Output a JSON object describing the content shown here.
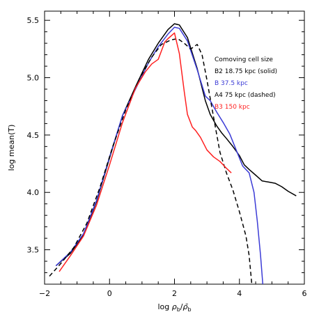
{
  "chart_data": {
    "type": "line",
    "xlabel_prefix": "log ",
    "xlabel_ratio": "ρ_b/ρ̄_b",
    "ylabel": "log mean(T)",
    "xlim": [
      -2,
      6
    ],
    "ylim": [
      3.2,
      5.58
    ],
    "xticks": [
      -2,
      0,
      2,
      4,
      6
    ],
    "xtick_labels": [
      "−2",
      "0",
      "2",
      "4",
      "6"
    ],
    "yticks": [
      3.5,
      4.0,
      4.5,
      5.0,
      5.5
    ],
    "ytick_labels": [
      "3.5",
      "4.0",
      "4.5",
      "5.0",
      "5.5"
    ],
    "grid": false,
    "legend_title": "Comoving cell size",
    "series": [
      {
        "name": "B2 18.75 kpc (solid)",
        "color": "#000000",
        "dash": "solid",
        "x": [
          -1.65,
          -1.2,
          -0.8,
          -0.4,
          0.0,
          0.4,
          0.8,
          1.2,
          1.5,
          1.8,
          2.0,
          2.15,
          2.4,
          2.7,
          2.95,
          3.1,
          3.3,
          3.45,
          3.6,
          3.8,
          4.0,
          4.15,
          4.3,
          4.5,
          4.7,
          4.9,
          5.1,
          5.3,
          5.5,
          5.75
        ],
        "y": [
          3.36,
          3.47,
          3.63,
          3.92,
          4.3,
          4.67,
          4.92,
          5.16,
          5.3,
          5.42,
          5.47,
          5.46,
          5.35,
          5.08,
          4.8,
          4.68,
          4.58,
          4.52,
          4.47,
          4.4,
          4.32,
          4.24,
          4.2,
          4.15,
          4.1,
          4.09,
          4.08,
          4.05,
          4.01,
          3.97
        ]
      },
      {
        "name": "B 37.5 kpc",
        "color": "#3b3bd6",
        "dash": "solid",
        "x": [
          -1.65,
          -1.2,
          -0.8,
          -0.4,
          0.0,
          0.4,
          0.8,
          1.2,
          1.5,
          1.8,
          2.0,
          2.15,
          2.4,
          2.7,
          2.95,
          3.1,
          3.3,
          3.5,
          3.7,
          3.9,
          4.1,
          4.3,
          4.45,
          4.55,
          4.65,
          4.72
        ],
        "y": [
          3.36,
          3.48,
          3.64,
          3.93,
          4.31,
          4.67,
          4.9,
          5.13,
          5.27,
          5.38,
          5.44,
          5.43,
          5.32,
          5.07,
          4.84,
          4.8,
          4.7,
          4.61,
          4.51,
          4.37,
          4.23,
          4.17,
          4.0,
          3.75,
          3.45,
          3.2
        ]
      },
      {
        "name": "A4 75 kpc (dashed)",
        "color": "#000000",
        "dash": "dashed",
        "x": [
          -1.85,
          -1.5,
          -1.1,
          -0.7,
          -0.3,
          0.1,
          0.5,
          0.9,
          1.3,
          1.6,
          1.9,
          2.1,
          2.3,
          2.5,
          2.7,
          2.85,
          3.0,
          3.2,
          3.4,
          3.6,
          3.8,
          4.0,
          4.2,
          4.3,
          4.38
        ],
        "y": [
          3.27,
          3.38,
          3.52,
          3.73,
          4.04,
          4.4,
          4.72,
          4.98,
          5.18,
          5.29,
          5.33,
          5.34,
          5.3,
          5.25,
          5.29,
          5.2,
          4.98,
          4.66,
          4.35,
          4.17,
          4.02,
          3.83,
          3.62,
          3.45,
          3.2
        ]
      },
      {
        "name": "B3 150 kpc",
        "color": "#ff2020",
        "dash": "solid",
        "x": [
          -1.55,
          -1.2,
          -0.8,
          -0.4,
          0.0,
          0.4,
          0.8,
          1.1,
          1.3,
          1.5,
          1.7,
          1.8,
          2.0,
          2.15,
          2.3,
          2.4,
          2.55,
          2.65,
          2.8,
          3.0,
          3.2,
          3.4,
          3.6,
          3.75
        ],
        "y": [
          3.31,
          3.45,
          3.62,
          3.89,
          4.24,
          4.61,
          4.91,
          5.05,
          5.12,
          5.16,
          5.31,
          5.34,
          5.39,
          5.21,
          4.88,
          4.68,
          4.57,
          4.54,
          4.48,
          4.37,
          4.31,
          4.27,
          4.21,
          4.17
        ]
      }
    ]
  }
}
